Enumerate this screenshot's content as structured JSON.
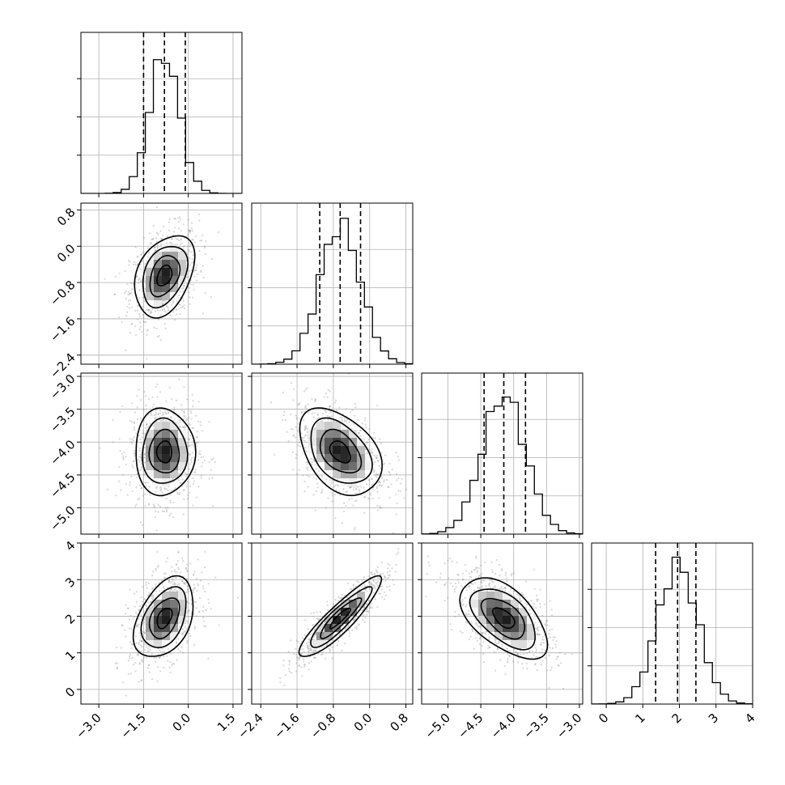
{
  "chart_data": {
    "type": "corner",
    "parameters": [
      {
        "index": 0,
        "range": [
          -3.6,
          1.8
        ],
        "ticks": [
          -3.0,
          -1.5,
          0.0,
          1.5
        ],
        "tick_labels": [
          "−3.0",
          "−1.5",
          "0.0",
          "1.5"
        ],
        "quantiles": [
          -1.5,
          -0.8,
          -0.1
        ],
        "mean": -0.8,
        "sd": 0.5
      },
      {
        "index": 1,
        "range": [
          -2.6,
          0.95
        ],
        "ticks": [
          -2.4,
          -1.6,
          -0.8,
          0.0,
          0.8
        ],
        "tick_labels": [
          "−2.4",
          "−1.6",
          "−0.8",
          "0.0",
          "0.8"
        ],
        "quantiles": [
          -1.1,
          -0.65,
          -0.2
        ],
        "mean": -0.65,
        "sd": 0.45
      },
      {
        "index": 2,
        "range": [
          -5.4,
          -2.95
        ],
        "ticks": [
          -5.0,
          -4.5,
          -4.0,
          -3.5,
          -3.0
        ],
        "tick_labels": [
          "−5.0",
          "−4.5",
          "−4.0",
          "−3.5",
          "−3.0"
        ],
        "quantiles": [
          -4.45,
          -4.15,
          -3.82
        ],
        "mean": -4.15,
        "sd": 0.33
      },
      {
        "index": 3,
        "range": [
          -0.4,
          4.0
        ],
        "ticks": [
          0,
          1,
          2,
          3,
          4
        ],
        "tick_labels": [
          "0",
          "1",
          "2",
          "3",
          "4"
        ],
        "quantiles": [
          1.35,
          1.95,
          2.45
        ],
        "mean": 1.95,
        "sd": 0.55
      }
    ],
    "correlations": {
      "1_0": 0.35,
      "2_0": 0.0,
      "2_1": -0.4,
      "3_0": 0.4,
      "3_1": 0.9,
      "3_2": -0.55
    },
    "histogram_bins": 20,
    "contour_levels": 4,
    "grid": true,
    "colors": {
      "hist": "#000000",
      "points": "#8c8c8c",
      "density": "#000000"
    }
  }
}
